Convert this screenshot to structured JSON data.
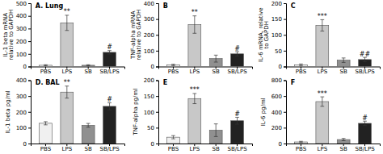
{
  "chart_data": [
    {
      "type": "bar",
      "title": "A. Lung",
      "ylabel": "IL-1 beta mRNA\nrelative to GAPDH",
      "categories": [
        "PBS",
        "LPS",
        "SB",
        "SB/LPS"
      ],
      "values": [
        10,
        345,
        10,
        112
      ],
      "errors": [
        4,
        60,
        4,
        14
      ],
      "colors": [
        "#f0f0f0",
        "#c8c8c8",
        "#909090",
        "#222222"
      ],
      "ylim": [
        0,
        500
      ],
      "yticks": [
        0,
        100,
        200,
        300,
        400,
        500
      ],
      "annotations": [
        {
          "category": "LPS",
          "text": "**"
        },
        {
          "category": "SB/LPS",
          "text": "#"
        }
      ]
    },
    {
      "type": "bar",
      "title": "B",
      "ylabel": "TNF-alpha mRNA\nrelative to GAPDH",
      "categories": [
        "PBS",
        "LPS",
        "SB",
        "SB/LPS"
      ],
      "values": [
        10,
        265,
        50,
        80
      ],
      "errors": [
        4,
        55,
        22,
        14
      ],
      "colors": [
        "#f0f0f0",
        "#c8c8c8",
        "#909090",
        "#222222"
      ],
      "ylim": [
        0,
        400
      ],
      "yticks": [
        0,
        100,
        200,
        300,
        400
      ],
      "annotations": [
        {
          "category": "LPS",
          "text": "**"
        },
        {
          "category": "SB/LPS",
          "text": "#"
        }
      ]
    },
    {
      "type": "bar",
      "title": "C",
      "ylabel": "IL-6 mRNA, relative\nto GAPDH",
      "categories": [
        "PBS",
        "LPS",
        "SB",
        "SB/LPS"
      ],
      "values": [
        5,
        130,
        20,
        22
      ],
      "errors": [
        3,
        18,
        7,
        7
      ],
      "colors": [
        "#f0f0f0",
        "#c8c8c8",
        "#909090",
        "#222222"
      ],
      "ylim": [
        0,
        200
      ],
      "yticks": [
        0,
        50,
        100,
        150,
        200
      ],
      "annotations": [
        {
          "category": "LPS",
          "text": "***"
        },
        {
          "category": "SB/LPS",
          "text": "##"
        }
      ]
    },
    {
      "type": "bar",
      "title": "D. BAL",
      "ylabel": "IL-1 beta pg/ml",
      "categories": [
        "PBS",
        "LPS",
        "SB",
        "SB/LPS"
      ],
      "values": [
        128,
        325,
        115,
        235
      ],
      "errors": [
        10,
        38,
        12,
        22
      ],
      "colors": [
        "#f0f0f0",
        "#c8c8c8",
        "#909090",
        "#222222"
      ],
      "ylim": [
        0,
        400
      ],
      "yticks": [
        0,
        100,
        200,
        300,
        400
      ],
      "annotations": [
        {
          "category": "LPS",
          "text": "**"
        },
        {
          "category": "SB/LPS",
          "text": "#"
        }
      ]
    },
    {
      "type": "bar",
      "title": "E",
      "ylabel": "TNF-alpha pg/ml",
      "categories": [
        "PBS",
        "LPS",
        "SB",
        "SB/LPS"
      ],
      "values": [
        20,
        142,
        42,
        72
      ],
      "errors": [
        5,
        16,
        20,
        11
      ],
      "colors": [
        "#f0f0f0",
        "#c8c8c8",
        "#909090",
        "#222222"
      ],
      "ylim": [
        0,
        200
      ],
      "yticks": [
        0,
        50,
        100,
        150,
        200
      ],
      "annotations": [
        {
          "category": "LPS",
          "text": "***"
        },
        {
          "category": "SB/LPS",
          "text": "#"
        }
      ]
    },
    {
      "type": "bar",
      "title": "F",
      "ylabel": "IL-6 pg/ml",
      "categories": [
        "PBS",
        "LPS",
        "SB",
        "SB/LPS"
      ],
      "values": [
        20,
        530,
        50,
        255
      ],
      "errors": [
        8,
        60,
        14,
        28
      ],
      "colors": [
        "#f0f0f0",
        "#c8c8c8",
        "#909090",
        "#222222"
      ],
      "ylim": [
        0,
        800
      ],
      "yticks": [
        0,
        200,
        400,
        600,
        800
      ],
      "annotations": [
        {
          "category": "LPS",
          "text": "***"
        },
        {
          "category": "SB/LPS",
          "text": "#"
        }
      ]
    }
  ]
}
